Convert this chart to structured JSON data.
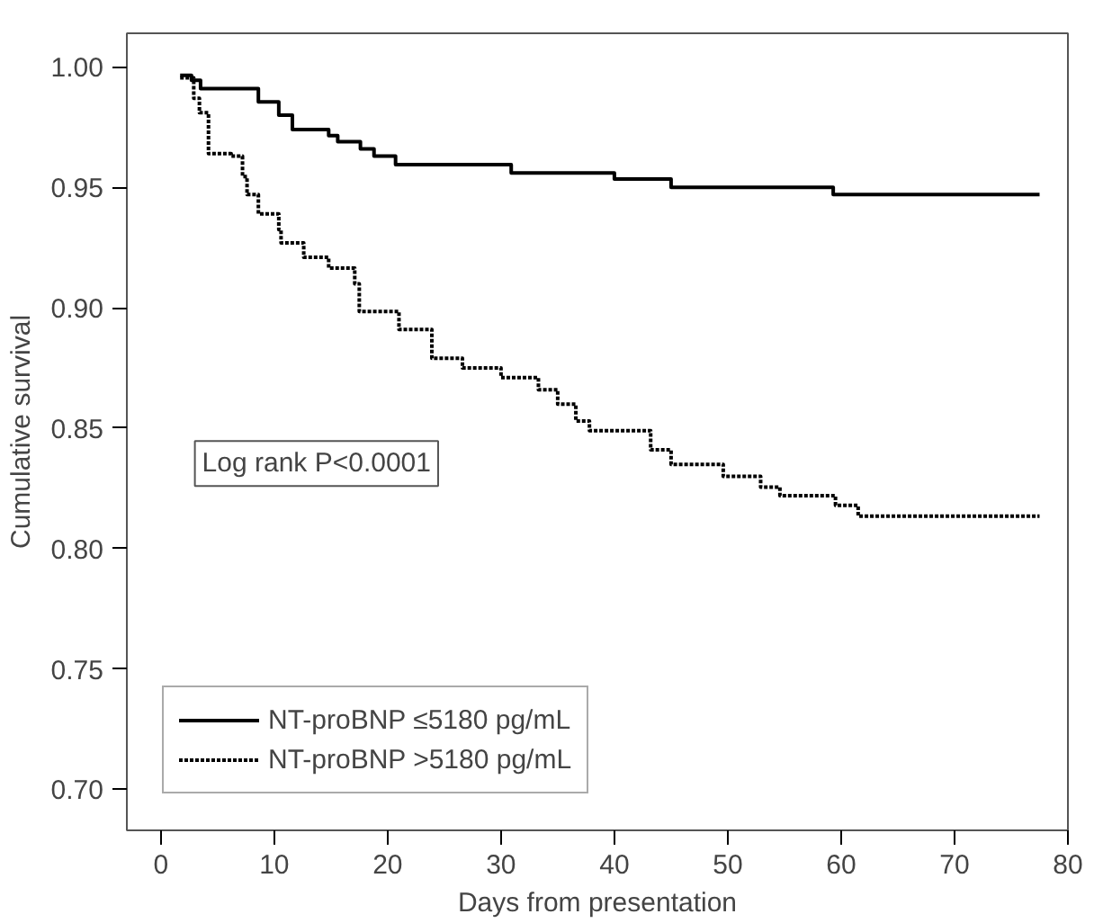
{
  "chart_data": {
    "type": "step",
    "xlabel": "Days from presentation",
    "ylabel": "Cumulative survival",
    "annotations": [
      "Log rank P<0.0001"
    ],
    "series": [
      {
        "name": "NT-proBNP ≤5180 pg/mL",
        "color": "#000000",
        "line_style": "solid",
        "x": [
          1.7,
          2.7,
          3.5,
          8.6,
          10.4,
          11.6,
          14.8,
          15.6,
          17.6,
          18.8,
          20.7,
          30.9,
          40,
          45,
          59.3,
          77.5
        ],
        "values": [
          0.9965,
          0.9945,
          0.991,
          0.9855,
          0.98,
          0.974,
          0.9715,
          0.969,
          0.966,
          0.963,
          0.9595,
          0.956,
          0.9535,
          0.95,
          0.947,
          0.947
        ]
      },
      {
        "name": "NT-proBNP >5180 pg/mL",
        "color": "#000000",
        "line_style": "dotted",
        "x": [
          1.7,
          2.9,
          3.4,
          4.2,
          6.2,
          7.2,
          7.6,
          8.6,
          10.4,
          10.6,
          12.6,
          14.8,
          17.1,
          17.5,
          21,
          23.9,
          26.6,
          30,
          33.3,
          35,
          36.6,
          37.8,
          43.2,
          45,
          49.6,
          52.9,
          54.6,
          59.5,
          61.5,
          77.5
        ],
        "values": [
          0.9955,
          0.987,
          0.981,
          0.964,
          0.963,
          0.9545,
          0.947,
          0.939,
          0.9325,
          0.927,
          0.921,
          0.9165,
          0.91,
          0.8985,
          0.891,
          0.879,
          0.875,
          0.871,
          0.866,
          0.86,
          0.853,
          0.849,
          0.841,
          0.835,
          0.83,
          0.8255,
          0.822,
          0.818,
          0.8135,
          0.8135
        ]
      }
    ],
    "xlim": [
      -3,
      80
    ],
    "xticks": [
      0,
      10,
      20,
      30,
      40,
      50,
      60,
      70,
      80
    ],
    "ylim": [
      0.683,
      1.014
    ],
    "yticks": [
      {
        "value": 0.7,
        "label": "0.70"
      },
      {
        "value": 0.75,
        "label": "0.75"
      },
      {
        "value": 0.8,
        "label": "0.80"
      },
      {
        "value": 0.85,
        "label": "0.85"
      },
      {
        "value": 0.9,
        "label": "0.90"
      },
      {
        "value": 0.95,
        "label": "0.95"
      },
      {
        "value": 1.0,
        "label": "1.00"
      }
    ],
    "grid": false,
    "legend": "bottom left"
  }
}
